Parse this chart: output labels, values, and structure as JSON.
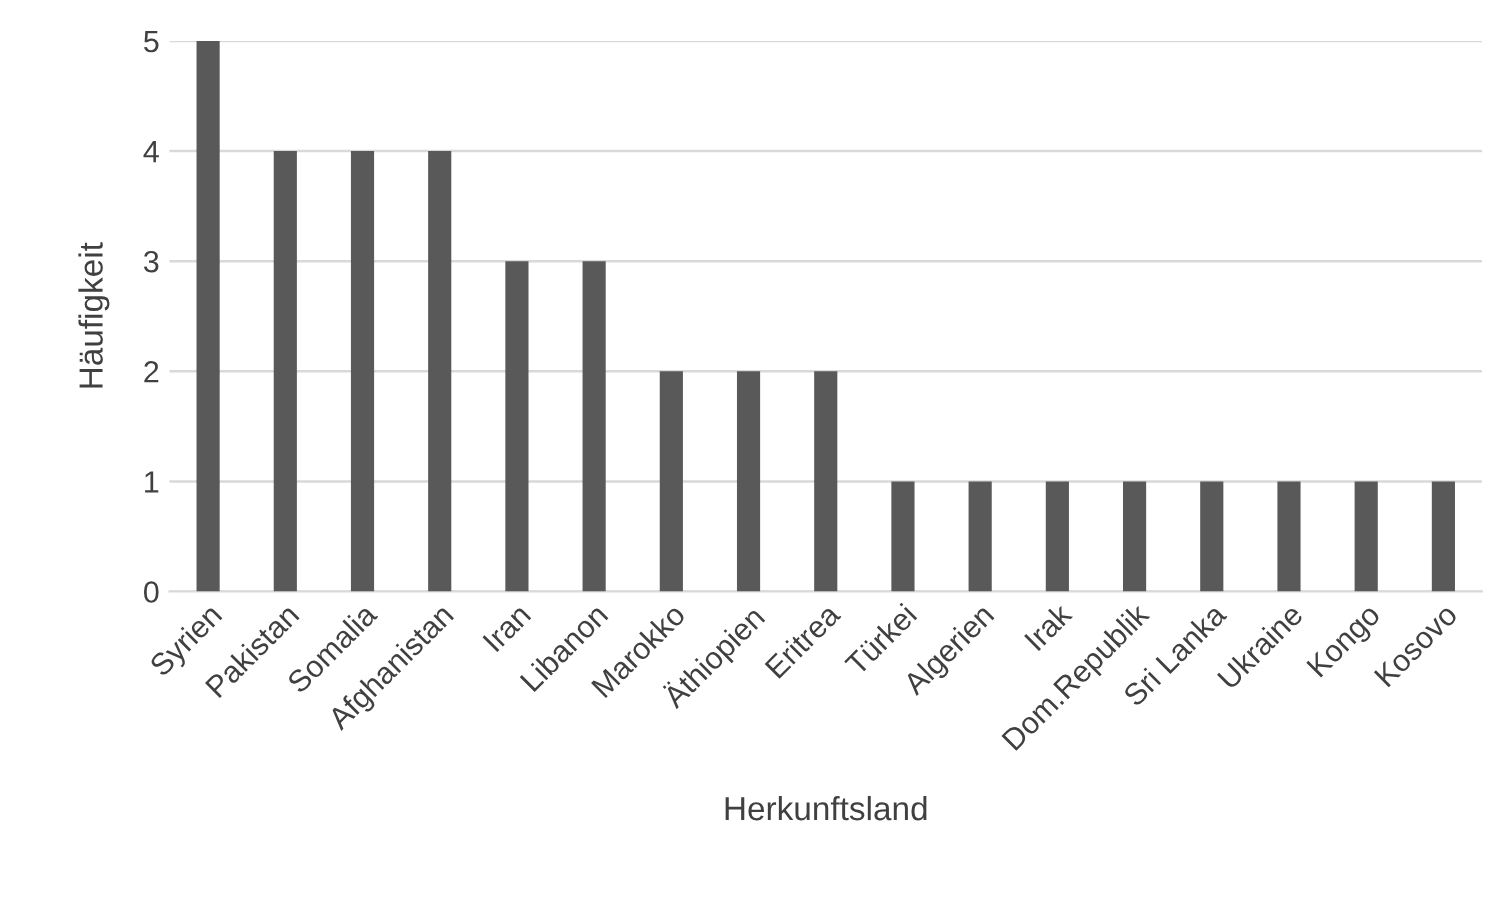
{
  "chart_data": {
    "type": "bar",
    "xlabel": "Herkunftsland",
    "ylabel": "Häufigkeit",
    "categories": [
      "Syrien",
      "Pakistan",
      "Somalia",
      "Afghanistan",
      "Iran",
      "Libanon",
      "Marokko",
      "Äthiopien",
      "Eritrea",
      "Türkei",
      "Algerien",
      "Irak",
      "Dom.Republik",
      "Sri Lanka",
      "Ukraine",
      "Kongo",
      "Kosovo"
    ],
    "values": [
      5,
      4,
      4,
      4,
      3,
      3,
      2,
      2,
      2,
      1,
      1,
      1,
      1,
      1,
      1,
      1,
      1
    ],
    "color": "#595959",
    "ylim": [
      0,
      5
    ],
    "yticks": [
      0,
      1,
      2,
      3,
      4,
      5
    ],
    "grid": "y"
  }
}
